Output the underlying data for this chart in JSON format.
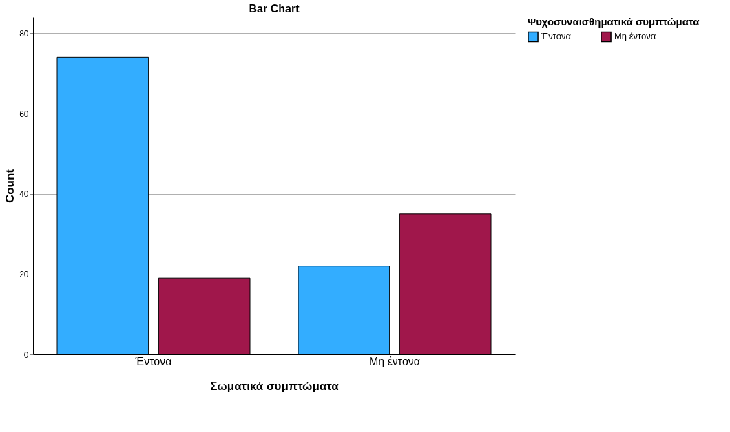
{
  "chart_data": {
    "type": "bar",
    "title": "Bar Chart",
    "xlabel": "Σωματικά συμπτώματα",
    "ylabel": "Count",
    "legend_title": "Ψυχοσυναισθηματικά συμπτώματα",
    "categories": [
      "Έντονα",
      "Μη έντονα"
    ],
    "series": [
      {
        "name": "Έντονα",
        "color": "#33adff",
        "values": [
          74,
          22
        ]
      },
      {
        "name": "Μη έντονα",
        "color": "#a0174b",
        "values": [
          19,
          35
        ]
      }
    ],
    "ylim": [
      0,
      84
    ],
    "yticks": [
      0,
      20,
      40,
      60,
      80
    ],
    "grid": "y",
    "legend": "top right"
  }
}
